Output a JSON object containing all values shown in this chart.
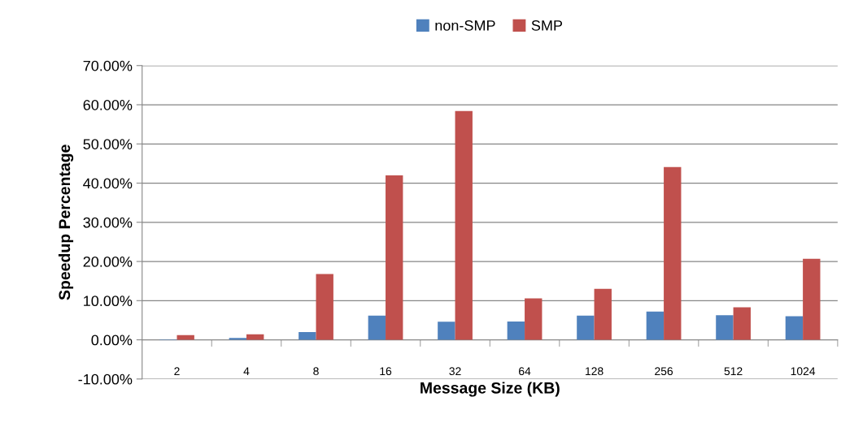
{
  "chart_data": {
    "type": "bar",
    "xlabel": "Message Size (KB)",
    "ylabel": "Speedup Percentage",
    "categories": [
      "2",
      "4",
      "8",
      "16",
      "32",
      "64",
      "128",
      "256",
      "512",
      "1024"
    ],
    "series": [
      {
        "name": "non-SMP",
        "color": "#4f81bd",
        "values": [
          0.1,
          0.5,
          2.0,
          6.2,
          4.6,
          4.7,
          6.2,
          7.2,
          6.3,
          6.0
        ]
      },
      {
        "name": "SMP",
        "color": "#c0504d",
        "values": [
          1.2,
          1.4,
          16.8,
          42.0,
          58.4,
          10.6,
          13.0,
          44.1,
          8.3,
          20.7
        ]
      }
    ],
    "ylim": [
      -10,
      70
    ],
    "yticks": [
      {
        "value": -10,
        "label": "-10.00%"
      },
      {
        "value": 0,
        "label": "0.00%"
      },
      {
        "value": 10,
        "label": "10.00%"
      },
      {
        "value": 20,
        "label": "20.00%"
      },
      {
        "value": 30,
        "label": "30.00%"
      },
      {
        "value": 40,
        "label": "40.00%"
      },
      {
        "value": 50,
        "label": "50.00%"
      },
      {
        "value": 60,
        "label": "60.00%"
      },
      {
        "value": 70,
        "label": "70.00%"
      }
    ],
    "grid": "y",
    "legend": "top"
  }
}
